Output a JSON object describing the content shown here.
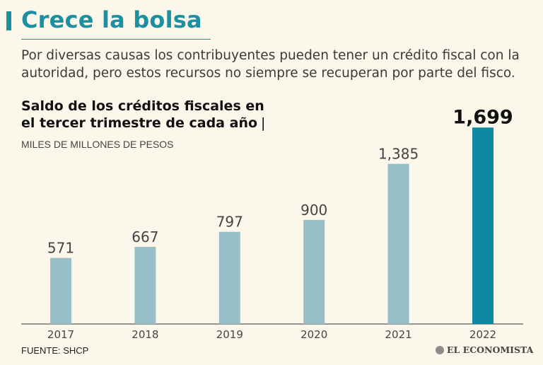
{
  "header": {
    "title": "Crece la bolsa",
    "intro": "Por diversas causas los contribuyentes pueden tener un crédito fiscal con la autoridad, pero estos recursos no siempre se recuperan por parte del fisco."
  },
  "chart_data": {
    "type": "bar",
    "title_line1": "Saldo de los créditos fiscales en",
    "title_line2": "el tercer trimestre de cada año",
    "title_separator": "|",
    "subtitle": "MILES DE MILLONES DE PESOS",
    "categories": [
      "2017",
      "2018",
      "2019",
      "2020",
      "2021",
      "2022"
    ],
    "values": [
      571,
      667,
      797,
      900,
      1385,
      1699
    ],
    "value_labels": [
      "571",
      "667",
      "797",
      "900",
      "1,385",
      "1,699"
    ],
    "highlight_index": 5,
    "ylim": [
      0,
      1860
    ],
    "xlabel": "",
    "ylabel": "",
    "grid": false
  },
  "colors": {
    "accent": "#1c8fa0",
    "bar": "#98bfc8",
    "bar_highlight": "#0d8aa2",
    "background": "#fbf7ea"
  },
  "footer": {
    "source": "FUENTE: SHCP",
    "brand": "EL ECONOMISTA",
    "brand_icon": "el-economista-logo-icon"
  }
}
